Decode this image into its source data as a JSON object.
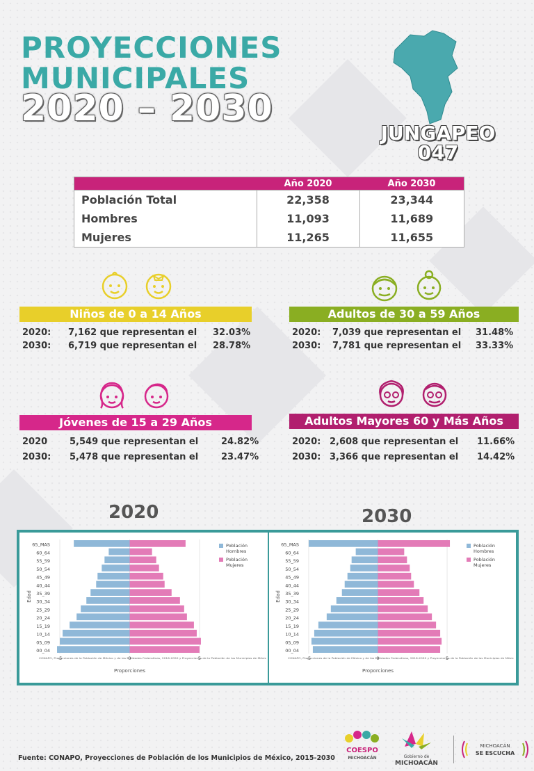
{
  "header": {
    "line1": "PROYECCIONES",
    "line2": "MUNICIPALES",
    "line3": "2020 – 2030",
    "municipio": "JUNGAPEO",
    "clave": "047"
  },
  "table": {
    "col_2020": "Año 2020",
    "col_2030": "Año 2030",
    "rows": [
      {
        "label": "Población Total",
        "v2020": "22,358",
        "v2030": "23,344"
      },
      {
        "label": "Hombres",
        "v2020": "11,093",
        "v2030": "11,689"
      },
      {
        "label": "Mujeres",
        "v2020": "11,265",
        "v2030": "11,655"
      }
    ]
  },
  "groups": {
    "ninos": {
      "title": "Niños de 0 a 14 Años",
      "color": "#e8cf2a",
      "l1_year": "2020:",
      "l1_text": "7,162 que representan el",
      "l1_pct": "32.03%",
      "l2_year": "2030:",
      "l2_text": "6,719 que representan el",
      "l2_pct": "28.78%"
    },
    "adultos": {
      "title": "Adultos de 30 a 59 Años",
      "color": "#8aae22",
      "l1_year": "2020:",
      "l1_text": "7,039 que representan el",
      "l1_pct": "31.48%",
      "l2_year": "2030:",
      "l2_text": "7,781 que representan el",
      "l2_pct": "33.33%"
    },
    "jovenes": {
      "title": "Jóvenes de 15 a 29 Años",
      "color": "#d6278a",
      "l1_year": "2020",
      "l1_text": "5,549 que representan el",
      "l1_pct": "24.82%",
      "l2_year": "2030:",
      "l2_text": "5,478 que representan el",
      "l2_pct": "23.47%"
    },
    "mayores": {
      "title": "Adultos Mayores  60 y Más Años",
      "color": "#b11f6e",
      "l1_year": "2020:",
      "l1_text": "2,608 que representan el",
      "l1_pct": "11.66%",
      "l2_year": "2030:",
      "l2_text": "3,366 que representan el",
      "l2_pct": "14.42%"
    }
  },
  "year_labels": {
    "a": "2020",
    "b": "2030"
  },
  "chart_data": [
    {
      "type": "bar",
      "orientation": "horizontal-pyramid",
      "year": "2020",
      "categories": [
        "00_04",
        "05_09",
        "10_14",
        "15_19",
        "20_24",
        "25_29",
        "30_34",
        "35_39",
        "40_44",
        "45_49",
        "50_54",
        "55_59",
        "60_64",
        "65_MAS"
      ],
      "series": [
        {
          "name": "Población Hombres",
          "color": "#8fb8d8",
          "values": [
            -5.2,
            -5.0,
            -4.8,
            -4.3,
            -3.8,
            -3.5,
            -3.1,
            -2.8,
            -2.4,
            -2.3,
            -2.0,
            -1.8,
            -1.5,
            -4.0
          ]
        },
        {
          "name": "Población Mujeres",
          "color": "#e37bb7",
          "values": [
            5.0,
            5.1,
            4.8,
            4.6,
            4.1,
            3.9,
            3.6,
            3.0,
            2.5,
            2.4,
            2.1,
            1.9,
            1.6,
            4.0
          ]
        }
      ],
      "xticks": [
        -5,
        0,
        5
      ],
      "xlabel": "Proporciones",
      "ylabel": "Edad",
      "xlim": [
        -5.5,
        5.5
      ],
      "legend": "top-right",
      "note": "CONAPO, Proyecciones de la Población de México y de las Entidades Federativas, 2016-2050 y Proyecciones de la Población de los Municipios de Méxic"
    },
    {
      "type": "bar",
      "orientation": "horizontal-pyramid",
      "year": "2030",
      "categories": [
        "00_04",
        "05_09",
        "10_14",
        "15_19",
        "20_24",
        "25_29",
        "30_34",
        "35_39",
        "40_44",
        "45_49",
        "50_54",
        "55_59",
        "60_64",
        "65_MAS"
      ],
      "series": [
        {
          "name": "Población Hombres",
          "color": "#8fb8d8",
          "values": [
            -4.7,
            -4.8,
            -4.6,
            -4.3,
            -3.7,
            -3.4,
            -3.0,
            -2.6,
            -2.4,
            -2.2,
            -2.0,
            -1.9,
            -1.6,
            -5.0
          ]
        },
        {
          "name": "Población Mujeres",
          "color": "#e37bb7",
          "values": [
            4.5,
            4.6,
            4.5,
            4.2,
            3.9,
            3.6,
            3.3,
            3.0,
            2.6,
            2.4,
            2.3,
            2.1,
            1.9,
            5.2
          ]
        }
      ],
      "xticks": [
        -5,
        0,
        5
      ],
      "xlabel": "Proporciones",
      "ylabel": "Edad",
      "xlim": [
        -5.5,
        5.5
      ],
      "legend": "top-right",
      "note": "CONAPO, Proyecciones de la Población de México y de las Entidades Federativas, 2016-2050 y Proyecciones de la Población de los Municipios de Méxic"
    }
  ],
  "footer": {
    "source": "Fuente: CONAPO, Proyecciones de Población de los Municipios de México, 2015-2030",
    "logo1_a": "COESPO",
    "logo1_b": "MICHOACÁN",
    "logo2_a": "Gobierno de",
    "logo2_b": "MICHOACÁN",
    "logo3_a": "MICHOACÁN",
    "logo3_b": "SE ESCUCHA"
  }
}
